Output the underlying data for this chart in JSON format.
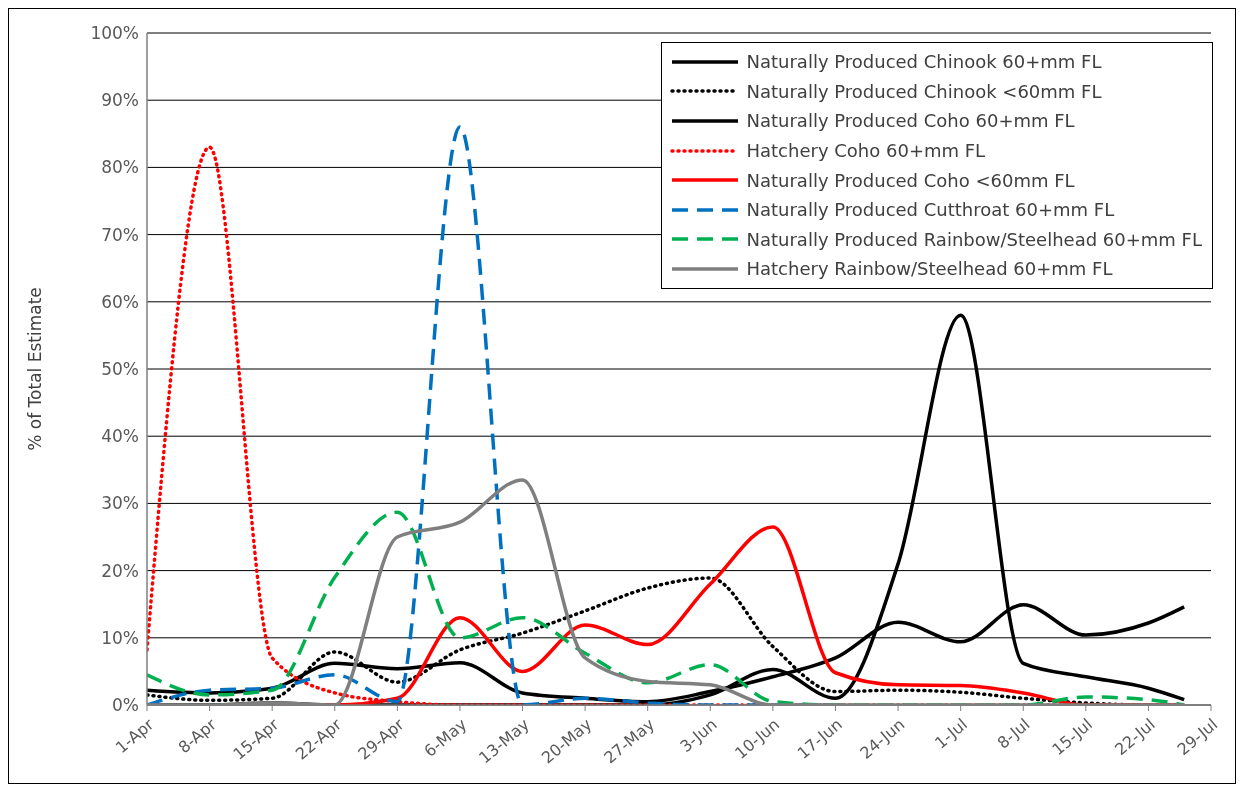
{
  "chart_data": {
    "type": "line",
    "ylabel": "% of Total Estimate",
    "x": [
      "--04-01",
      "--04-08",
      "--04-15",
      "--04-22",
      "--04-29",
      "--05-06",
      "--05-13",
      "--05-20",
      "--05-27",
      "--06-03",
      "--06-10",
      "--06-17",
      "--06-24",
      "--07-01",
      "--07-08",
      "--07-15",
      "--07-22",
      "--07-26"
    ],
    "series": [
      {
        "name": "Naturally Produced Chinook 60+mm FL",
        "color": "#000000",
        "line_style": "solid",
        "values": [
          0,
          0,
          0.3,
          0,
          0,
          0,
          0,
          0,
          0,
          1.5,
          5.3,
          1,
          21,
          58,
          6.2,
          4.2,
          2.5,
          0.8
        ]
      },
      {
        "name": "Naturally Produced Chinook <60mm FL",
        "color": "#000000",
        "line_style": "dotted",
        "values": [
          1.5,
          0.7,
          1,
          7.9,
          3.4,
          8.2,
          10.7,
          14,
          17.4,
          18.9,
          8.7,
          2,
          2.2,
          1.9,
          1,
          0.3,
          0,
          0
        ]
      },
      {
        "name": "Naturally Produced Coho 60+mm FL",
        "color": "#000000",
        "line_style": "solid",
        "values": [
          2.2,
          1.8,
          2.5,
          6.2,
          5.4,
          6.3,
          1.8,
          1,
          0.5,
          2,
          4.2,
          7,
          12.3,
          9.4,
          14.9,
          10.4,
          12.2,
          14.6
        ]
      },
      {
        "name": "Hatchery Coho 60+mm FL",
        "color": "#ff0000",
        "line_style": "dotted",
        "values": [
          8.2,
          83,
          7,
          1.8,
          0.5,
          0,
          0,
          0,
          0,
          0,
          0,
          0,
          0,
          0,
          0,
          0,
          0,
          0
        ]
      },
      {
        "name": "Naturally Produced Coho <60mm FL",
        "color": "#ff0000",
        "line_style": "solid",
        "values": [
          null,
          null,
          0,
          0,
          1,
          13,
          5,
          11.9,
          9,
          18,
          26.5,
          4.8,
          3,
          2.9,
          1.8,
          0,
          0,
          0
        ]
      },
      {
        "name": "Naturally Produced Cutthroat 60+mm FL",
        "color": "#0070c0",
        "line_style": "dashed",
        "values": [
          0,
          2.2,
          2.5,
          4.5,
          0.5,
          86,
          0,
          1,
          0.3,
          0,
          0,
          0,
          null,
          null,
          null,
          null,
          null,
          null
        ]
      },
      {
        "name": "Naturally Produced Rainbow/Steelhead 60+mm FL",
        "color": "#00b050",
        "line_style": "dashed",
        "values": [
          4.5,
          1.5,
          2.2,
          19,
          28.7,
          10,
          13,
          7.7,
          3.3,
          6,
          0.5,
          0,
          0,
          0,
          0,
          1.2,
          0.8,
          0
        ]
      },
      {
        "name": "Hatchery Rainbow/Steelhead 60+mm FL",
        "color": "#7f7f7f",
        "line_style": "solid",
        "values": [
          0,
          0,
          0.3,
          0,
          25,
          27.2,
          33.5,
          7,
          3.5,
          3,
          0,
          0,
          0,
          0,
          0,
          0,
          0,
          0
        ]
      }
    ],
    "xlim": [
      "--04-01",
      "--07-29"
    ],
    "xticks": [
      {
        "value": "--04-01",
        "label": "1-Apr"
      },
      {
        "value": "--04-08",
        "label": "8-Apr"
      },
      {
        "value": "--04-15",
        "label": "15-Apr"
      },
      {
        "value": "--04-22",
        "label": "22-Apr"
      },
      {
        "value": "--04-29",
        "label": "29-Apr"
      },
      {
        "value": "--05-06",
        "label": "6-May"
      },
      {
        "value": "--05-13",
        "label": "13-May"
      },
      {
        "value": "--05-20",
        "label": "20-May"
      },
      {
        "value": "--05-27",
        "label": "27-May"
      },
      {
        "value": "--06-03",
        "label": "3-Jun"
      },
      {
        "value": "--06-10",
        "label": "10-Jun"
      },
      {
        "value": "--06-17",
        "label": "17-Jun"
      },
      {
        "value": "--06-24",
        "label": "24-Jun"
      },
      {
        "value": "--07-01",
        "label": "1-Jul"
      },
      {
        "value": "--07-08",
        "label": "8-Jul"
      },
      {
        "value": "--07-15",
        "label": "15-Jul"
      },
      {
        "value": "--07-22",
        "label": "22-Jul"
      },
      {
        "value": "--07-29",
        "label": "29-Jul"
      }
    ],
    "ylim": [
      0,
      100
    ],
    "yticks": [
      {
        "value": 0,
        "label": "0%"
      },
      {
        "value": 10,
        "label": "10%"
      },
      {
        "value": 20,
        "label": "20%"
      },
      {
        "value": 30,
        "label": "30%"
      },
      {
        "value": 40,
        "label": "40%"
      },
      {
        "value": 50,
        "label": "50%"
      },
      {
        "value": 60,
        "label": "60%"
      },
      {
        "value": 70,
        "label": "70%"
      },
      {
        "value": 80,
        "label": "80%"
      },
      {
        "value": 90,
        "label": "90%"
      },
      {
        "value": 100,
        "label": "100%"
      }
    ],
    "grid": "y",
    "legend": "top right",
    "marker": "none"
  }
}
